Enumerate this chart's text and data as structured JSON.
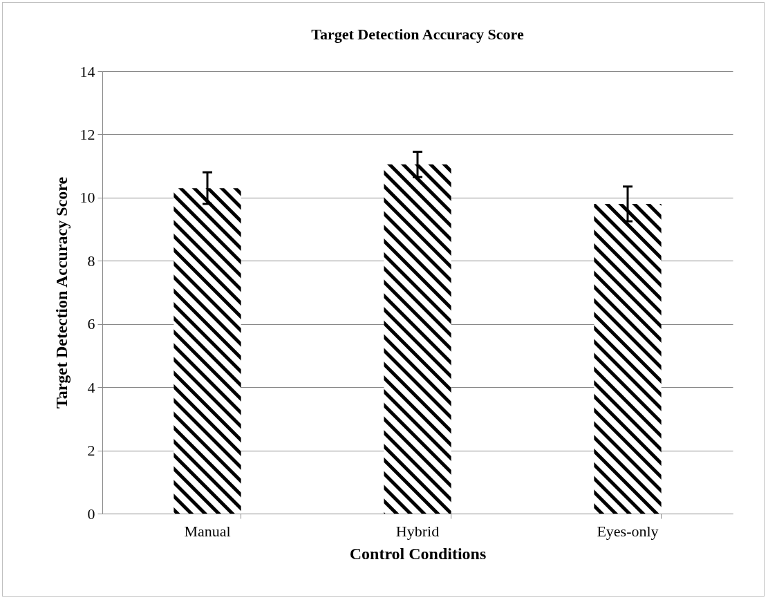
{
  "chart_data": {
    "type": "bar",
    "title": "Target Detection Accuracy Score",
    "xlabel": "Control Conditions",
    "ylabel": "Target Detection Accuracy Score",
    "categories": [
      "Manual",
      "Hybrid",
      "Eyes-only"
    ],
    "values": [
      10.3,
      11.05,
      9.8
    ],
    "errors": [
      0.5,
      0.4,
      0.55
    ],
    "color": "#000000",
    "ylim": [
      0,
      14
    ],
    "yticks": [
      0,
      2,
      4,
      6,
      8,
      10,
      12,
      14
    ],
    "grid": "y"
  }
}
